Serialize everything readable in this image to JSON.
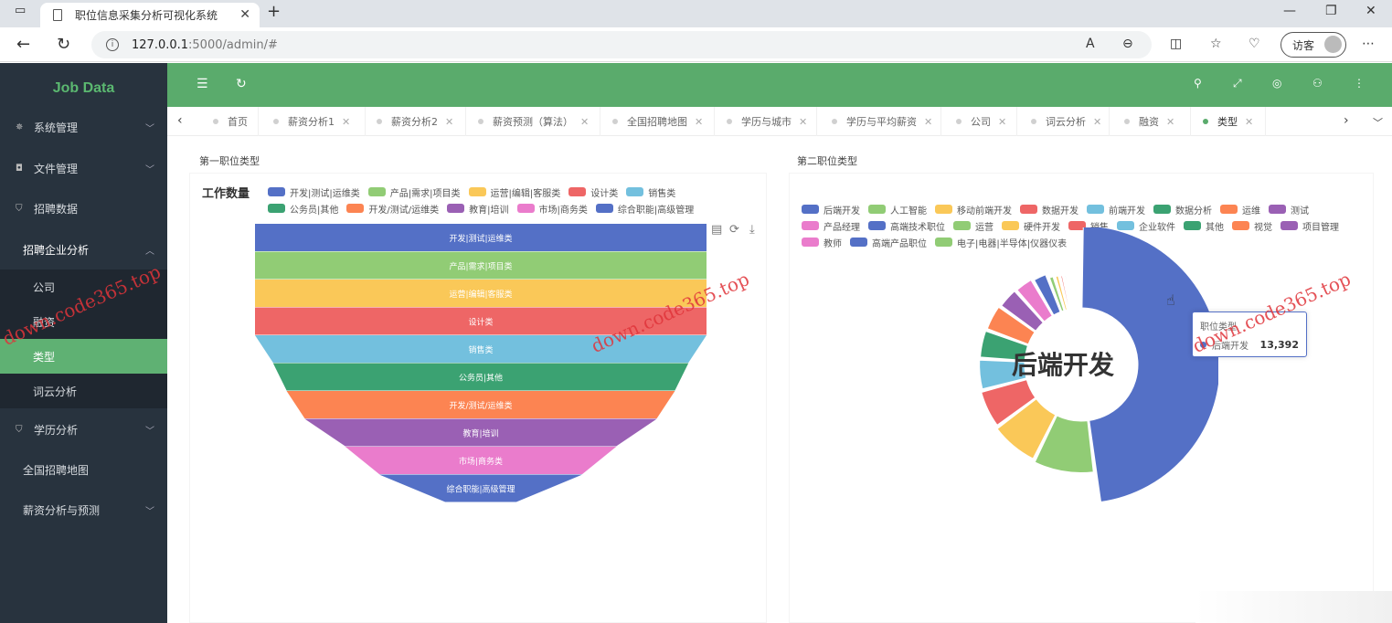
{
  "browser": {
    "tab_title": "职位信息采集分析可视化系统",
    "url_host": "127.0.0.1",
    "url_path": ":5000/admin/#",
    "guest_label": "访客"
  },
  "sidebar": {
    "logo": "Job Data",
    "items": [
      {
        "label": "系统管理"
      },
      {
        "label": "文件管理"
      },
      {
        "label": "招聘数据"
      },
      {
        "label": "招聘企业分析"
      },
      {
        "label": "公司"
      },
      {
        "label": "融资"
      },
      {
        "label": "类型"
      },
      {
        "label": "词云分析"
      },
      {
        "label": "学历分析"
      },
      {
        "label": "全国招聘地图"
      },
      {
        "label": "薪资分析与预测"
      }
    ]
  },
  "page_tabs": [
    "首页",
    "薪资分析1",
    "薪资分析2",
    "薪资预测（算法）",
    "全国招聘地图",
    "学历与城市",
    "学历与平均薪资",
    "公司",
    "词云分析",
    "融资",
    "类型"
  ],
  "left_card": {
    "title": "第一职位类型",
    "chart_title": "工作数量"
  },
  "right_card": {
    "title": "第二职位类型"
  },
  "watermark": "down.code365.top",
  "colors": {
    "accent": "#5aab6c",
    "sidebar": "#28333e"
  },
  "chart_data": [
    {
      "type": "funnel",
      "title": "工作数量",
      "legend_position": "top",
      "categories": [
        "开发|测试|运维类",
        "产品|需求|项目类",
        "运营|编辑|客服类",
        "设计类",
        "销售类",
        "公务员|其他",
        "开发/测试/运维类",
        "教育|培训",
        "市场|商务类",
        "综合职能|高级管理"
      ],
      "values": [
        100,
        100,
        100,
        100,
        100,
        92,
        86,
        78,
        60,
        45
      ],
      "colors": [
        "#5470c6",
        "#91cc75",
        "#fac858",
        "#ee6666",
        "#73c0de",
        "#3ba272",
        "#fc8452",
        "#9a60b4",
        "#ea7ccc",
        "#5470c6"
      ]
    },
    {
      "type": "pie",
      "subtype": "rose-donut",
      "center_label": "后端开发",
      "legend_position": "top",
      "tooltip": {
        "title": "职位类型",
        "name": "后端开发",
        "value": "13,392"
      },
      "slices": [
        {
          "name": "后端开发",
          "value": 13392,
          "color": "#5470c6"
        },
        {
          "name": "人工智能",
          "value": 2600,
          "color": "#91cc75"
        },
        {
          "name": "移动前端开发",
          "value": 2100,
          "color": "#fac858"
        },
        {
          "name": "数据开发",
          "value": 1700,
          "color": "#ee6666"
        },
        {
          "name": "前端开发",
          "value": 1400,
          "color": "#73c0de"
        },
        {
          "name": "数据分析",
          "value": 1300,
          "color": "#3ba272"
        },
        {
          "name": "运维",
          "value": 1200,
          "color": "#fc8452"
        },
        {
          "name": "测试",
          "value": 1000,
          "color": "#9a60b4"
        },
        {
          "name": "产品经理",
          "value": 900,
          "color": "#ea7ccc"
        },
        {
          "name": "高端技术职位",
          "value": 700,
          "color": "#5470c6"
        },
        {
          "name": "运营",
          "value": 300,
          "color": "#91cc75"
        },
        {
          "name": "硬件开发",
          "value": 250,
          "color": "#fac858"
        },
        {
          "name": "销售",
          "value": 200,
          "color": "#ee6666"
        },
        {
          "name": "企业软件",
          "value": 180,
          "color": "#73c0de"
        },
        {
          "name": "其他",
          "value": 160,
          "color": "#3ba272"
        },
        {
          "name": "视觉",
          "value": 140,
          "color": "#fc8452"
        },
        {
          "name": "项目管理",
          "value": 120,
          "color": "#9a60b4"
        },
        {
          "name": "教师",
          "value": 100,
          "color": "#ea7ccc"
        },
        {
          "name": "高端产品职位",
          "value": 90,
          "color": "#5470c6"
        },
        {
          "name": "电子|电器|半导体|仪器仪表",
          "value": 80,
          "color": "#91cc75"
        }
      ]
    }
  ]
}
